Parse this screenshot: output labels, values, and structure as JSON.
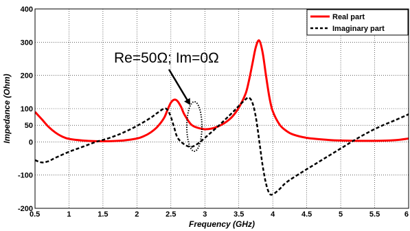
{
  "chart_data": {
    "type": "line",
    "xlabel": "Frequency (GHz)",
    "ylabel": "Impedance (Ohm)",
    "xlim": [
      0.5,
      6
    ],
    "ylim": [
      -200,
      400
    ],
    "xticks": [
      "0.5",
      "1",
      "1.5",
      "2",
      "2.5",
      "3",
      "3.5",
      "4",
      "4.5",
      "5",
      "5.5",
      "6"
    ],
    "xtick_values": [
      0.5,
      1,
      1.5,
      2,
      2.5,
      3,
      3.5,
      4,
      4.5,
      5,
      5.5,
      6
    ],
    "yticks": [
      "-200",
      "-100",
      "0",
      "50",
      "100",
      "200",
      "300",
      "400"
    ],
    "ytick_values": [
      -200,
      -100,
      0,
      50,
      100,
      200,
      300,
      400
    ],
    "grid": true,
    "legend_position": "top-right",
    "annotation": "Re=50Ω; Im=0Ω",
    "series": [
      {
        "name": "Real part",
        "color": "#ff0000",
        "style": "solid",
        "x": [
          0.5,
          0.6,
          0.7,
          0.8,
          0.9,
          1.0,
          1.2,
          1.4,
          1.6,
          1.8,
          2.0,
          2.1,
          2.2,
          2.3,
          2.4,
          2.45,
          2.5,
          2.55,
          2.6,
          2.65,
          2.7,
          2.8,
          2.9,
          3.0,
          3.1,
          3.2,
          3.3,
          3.4,
          3.5,
          3.6,
          3.65,
          3.7,
          3.75,
          3.8,
          3.85,
          3.9,
          3.95,
          4.0,
          4.1,
          4.2,
          4.3,
          4.5,
          4.8,
          5.0,
          5.5,
          5.8,
          6.0
        ],
        "y": [
          90,
          68,
          45,
          28,
          16,
          9,
          4,
          2,
          2,
          4,
          10,
          17,
          28,
          45,
          72,
          96,
          118,
          127,
          122,
          105,
          82,
          52,
          42,
          38,
          40,
          47,
          58,
          75,
          103,
          145,
          185,
          235,
          285,
          305,
          270,
          200,
          135,
          92,
          52,
          33,
          22,
          12,
          6,
          4,
          3,
          5,
          10
        ]
      },
      {
        "name": "Imaginary part",
        "color": "#000000",
        "style": "dashed",
        "x": [
          0.5,
          0.6,
          0.7,
          0.8,
          1.0,
          1.2,
          1.4,
          1.6,
          1.8,
          2.0,
          2.2,
          2.3,
          2.4,
          2.45,
          2.5,
          2.55,
          2.6,
          2.7,
          2.8,
          2.9,
          3.0,
          3.2,
          3.4,
          3.5,
          3.6,
          3.65,
          3.7,
          3.75,
          3.8,
          3.85,
          3.9,
          3.95,
          4.0,
          4.1,
          4.2,
          4.4,
          4.6,
          4.8,
          5.0,
          5.2,
          5.4,
          5.6,
          5.8,
          6.0
        ],
        "y": [
          -55,
          -62,
          -58,
          -48,
          -30,
          -15,
          0,
          12,
          28,
          48,
          72,
          87,
          100,
          96,
          75,
          42,
          12,
          -8,
          -15,
          -5,
          12,
          48,
          87,
          108,
          128,
          133,
          118,
          75,
          5,
          -70,
          -125,
          -155,
          -158,
          -142,
          -122,
          -95,
          -70,
          -45,
          -20,
          5,
          28,
          48,
          65,
          83
        ]
      }
    ]
  }
}
